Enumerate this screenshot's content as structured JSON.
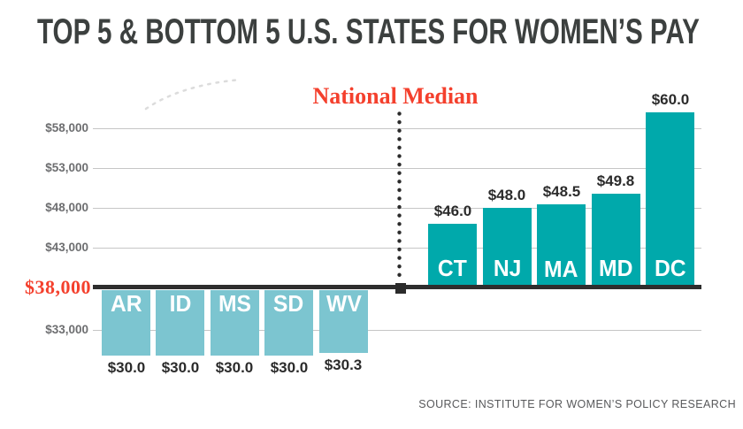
{
  "title": "TOP 5 & BOTTOM 5 U.S. STATES FOR WOMEN’S PAY",
  "source": "SOURCE: INSTITUTE FOR WOMEN’S POLICY RESEARCH",
  "colors": {
    "accent_red": "#f4402d",
    "top5_teal": "#00a9ab",
    "bottom5_blue": "#7cc5d0",
    "title_text": "#3c403f",
    "axis_text": "#6d6e70",
    "value_text": "#2b2b2b",
    "gridline": "#c6c6c6",
    "baseline": "#2e2e2e",
    "source_text": "#58595b"
  },
  "chart_data": {
    "type": "bar",
    "title": "TOP 5 & BOTTOM 5 U.S. STATES FOR WOMEN’S PAY",
    "xlabel": "",
    "ylabel": "",
    "grid": true,
    "legend": false,
    "values_in_thousands_usd": true,
    "ylim_thousands": [
      28,
      62
    ],
    "baseline_value": 38,
    "national_median": {
      "label": "National Median",
      "value": 38,
      "axis_label": "$38,000"
    },
    "y_ticks": [
      {
        "label": "$58,000",
        "value": 58,
        "highlight": false
      },
      {
        "label": "$53,000",
        "value": 53,
        "highlight": false
      },
      {
        "label": "$48,000",
        "value": 48,
        "highlight": false
      },
      {
        "label": "$43,000",
        "value": 43,
        "highlight": false
      },
      {
        "label": "$38,000",
        "value": 38,
        "highlight": true
      },
      {
        "label": "$33,000",
        "value": 33,
        "highlight": false
      }
    ],
    "groups": [
      {
        "name": "bottom-5-states",
        "bar_color": "#7cc5d0",
        "bars": [
          {
            "state": "AR",
            "value": 30.0,
            "value_label": "$30.0"
          },
          {
            "state": "ID",
            "value": 30.0,
            "value_label": "$30.0"
          },
          {
            "state": "MS",
            "value": 30.0,
            "value_label": "$30.0"
          },
          {
            "state": "SD",
            "value": 30.0,
            "value_label": "$30.0"
          },
          {
            "state": "WV",
            "value": 30.3,
            "value_label": "$30.3"
          }
        ]
      },
      {
        "name": "top-5-states",
        "bar_color": "#00a9ab",
        "bars": [
          {
            "state": "CT",
            "value": 46.0,
            "value_label": "$46.0"
          },
          {
            "state": "NJ",
            "value": 48.0,
            "value_label": "$48.0"
          },
          {
            "state": "MA",
            "value": 48.5,
            "value_label": "$48.5"
          },
          {
            "state": "MD",
            "value": 49.8,
            "value_label": "$49.8"
          },
          {
            "state": "DC",
            "value": 60.0,
            "value_label": "$60.0"
          }
        ]
      }
    ]
  }
}
